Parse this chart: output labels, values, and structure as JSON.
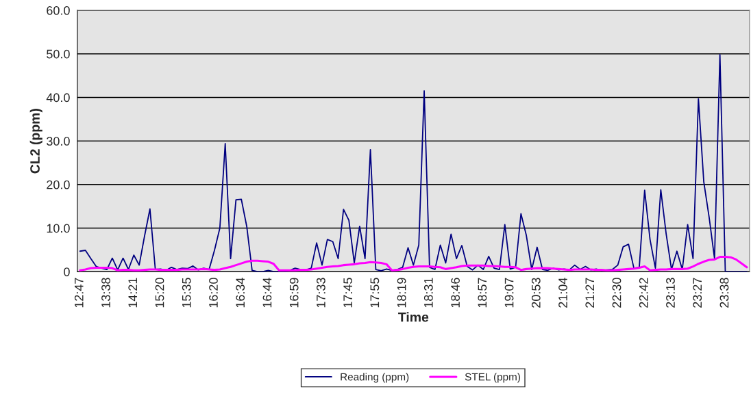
{
  "chart_data": {
    "type": "line",
    "xlabel": "Time",
    "ylabel": "CL2 (ppm)",
    "categories": [
      "12:47",
      null,
      null,
      null,
      null,
      "13:38",
      null,
      null,
      null,
      null,
      "14:21",
      null,
      null,
      null,
      null,
      "15:20",
      null,
      null,
      null,
      null,
      "15:35",
      null,
      null,
      null,
      null,
      "16:20",
      null,
      null,
      null,
      null,
      "16:34",
      null,
      null,
      null,
      null,
      "16:44",
      null,
      null,
      null,
      null,
      "16:59",
      null,
      null,
      null,
      null,
      "17:33",
      null,
      null,
      null,
      null,
      "17:45",
      null,
      null,
      null,
      null,
      "17:55",
      null,
      null,
      null,
      null,
      "18:19",
      null,
      null,
      null,
      null,
      "18:31",
      null,
      null,
      null,
      null,
      "18:46",
      null,
      null,
      null,
      null,
      "18:57",
      null,
      null,
      null,
      null,
      "19:07",
      null,
      null,
      null,
      null,
      "20:53",
      null,
      null,
      null,
      null,
      "21:04",
      null,
      null,
      null,
      null,
      "21:27",
      null,
      null,
      null,
      null,
      "22:30",
      null,
      null,
      null,
      null,
      "22:42",
      null,
      null,
      null,
      null,
      "23:13",
      null,
      null,
      null,
      null,
      "23:27",
      null,
      null,
      null,
      null,
      "23:38",
      null,
      null,
      null,
      null
    ],
    "series": [
      {
        "name": "Reading (ppm)",
        "color": "#000080",
        "values": [
          4.7,
          4.9,
          3,
          1.2,
          0.8,
          0.5,
          3.1,
          0.4,
          3.1,
          0.5,
          3.8,
          1.5,
          8.2,
          14.4,
          0.5,
          0.6,
          0.3,
          1,
          0.5,
          0.8,
          0.7,
          1.3,
          0.4,
          0.8,
          0.5,
          4.9,
          10,
          29.4,
          3,
          16.5,
          16.6,
          10.4,
          0.3,
          0,
          0,
          0.3,
          0,
          0,
          0,
          0.3,
          0.8,
          0.5,
          0.4,
          0.8,
          6.6,
          1.5,
          7.4,
          6.9,
          3,
          14.3,
          11.8,
          2,
          10.4,
          3,
          28,
          0.5,
          0.2,
          0.6,
          0.3,
          0.5,
          1,
          5.5,
          1.5,
          6.1,
          41.5,
          1,
          0.5,
          6.1,
          2,
          8.6,
          3,
          6,
          1.2,
          0.4,
          1.5,
          0.5,
          3.5,
          0.8,
          0.5,
          10.8,
          0.6,
          1,
          13.3,
          8.3,
          0.5,
          5.6,
          0.5,
          0.3,
          0.8,
          0.4,
          0.6,
          0.4,
          1.5,
          0.5,
          1.2,
          0.4,
          0.6,
          0.3,
          0.4,
          0.5,
          1.5,
          5.7,
          6.3,
          0.8,
          1,
          18.7,
          7.4,
          0.8,
          18.8,
          8.7,
          0.5,
          4.7,
          0.5,
          10.8,
          3,
          39.7,
          20.6,
          12.4,
          3,
          49.8,
          0,
          0,
          0,
          0,
          0
        ]
      },
      {
        "name": "STEL (ppm)",
        "color": "#ff00ff",
        "values": [
          0.3,
          0.5,
          0.8,
          0.9,
          0.9,
          0.9,
          0.8,
          0.3,
          0.4,
          0.4,
          0.3,
          0.3,
          0.4,
          0.5,
          0.5,
          0.4,
          0.4,
          0.4,
          0.4,
          0.5,
          0.5,
          0.5,
          0.5,
          0.6,
          0.5,
          0.4,
          0.5,
          0.8,
          1.1,
          1.5,
          1.9,
          2.3,
          2.5,
          2.5,
          2.4,
          2.3,
          1.8,
          0.3,
          0.3,
          0.3,
          0.3,
          0.4,
          0.4,
          0.5,
          0.7,
          0.9,
          1.1,
          1.2,
          1.3,
          1.5,
          1.6,
          1.7,
          1.9,
          2.0,
          2.2,
          2.1,
          2.0,
          1.7,
          0.3,
          0.4,
          0.6,
          0.9,
          1.1,
          1.2,
          1.2,
          1.2,
          1.1,
          1.0,
          0.6,
          0.8,
          1.0,
          1.3,
          1.4,
          1.4,
          1.4,
          1.4,
          1.3,
          1.3,
          1.2,
          1.1,
          1.1,
          1.0,
          0.4,
          0.6,
          0.7,
          0.8,
          0.8,
          0.8,
          0.7,
          0.6,
          0.5,
          0.4,
          0.5,
          0.5,
          0.5,
          0.5,
          0.4,
          0.4,
          0.3,
          0.3,
          0.4,
          0.5,
          0.6,
          0.7,
          0.9,
          1.2,
          0.3,
          0.4,
          0.5,
          0.5,
          0.6,
          0.6,
          0.6,
          0.7,
          1.2,
          1.8,
          2.3,
          2.7,
          2.8,
          3.4,
          3.4,
          3.3,
          2.8,
          1.9,
          1.0
        ]
      }
    ],
    "ylim": [
      0,
      60
    ],
    "yticks": [
      {
        "value": 0,
        "label": "0"
      },
      {
        "value": 10,
        "label": "10.0"
      },
      {
        "value": 20,
        "label": "20.0"
      },
      {
        "value": 30,
        "label": "30.0"
      },
      {
        "value": 40,
        "label": "40.0"
      },
      {
        "value": 50,
        "label": "50.0"
      },
      {
        "value": 60,
        "label": "60.0"
      }
    ],
    "grid": "y",
    "legend": "bottom",
    "marker": "none",
    "line_style": "solid"
  }
}
